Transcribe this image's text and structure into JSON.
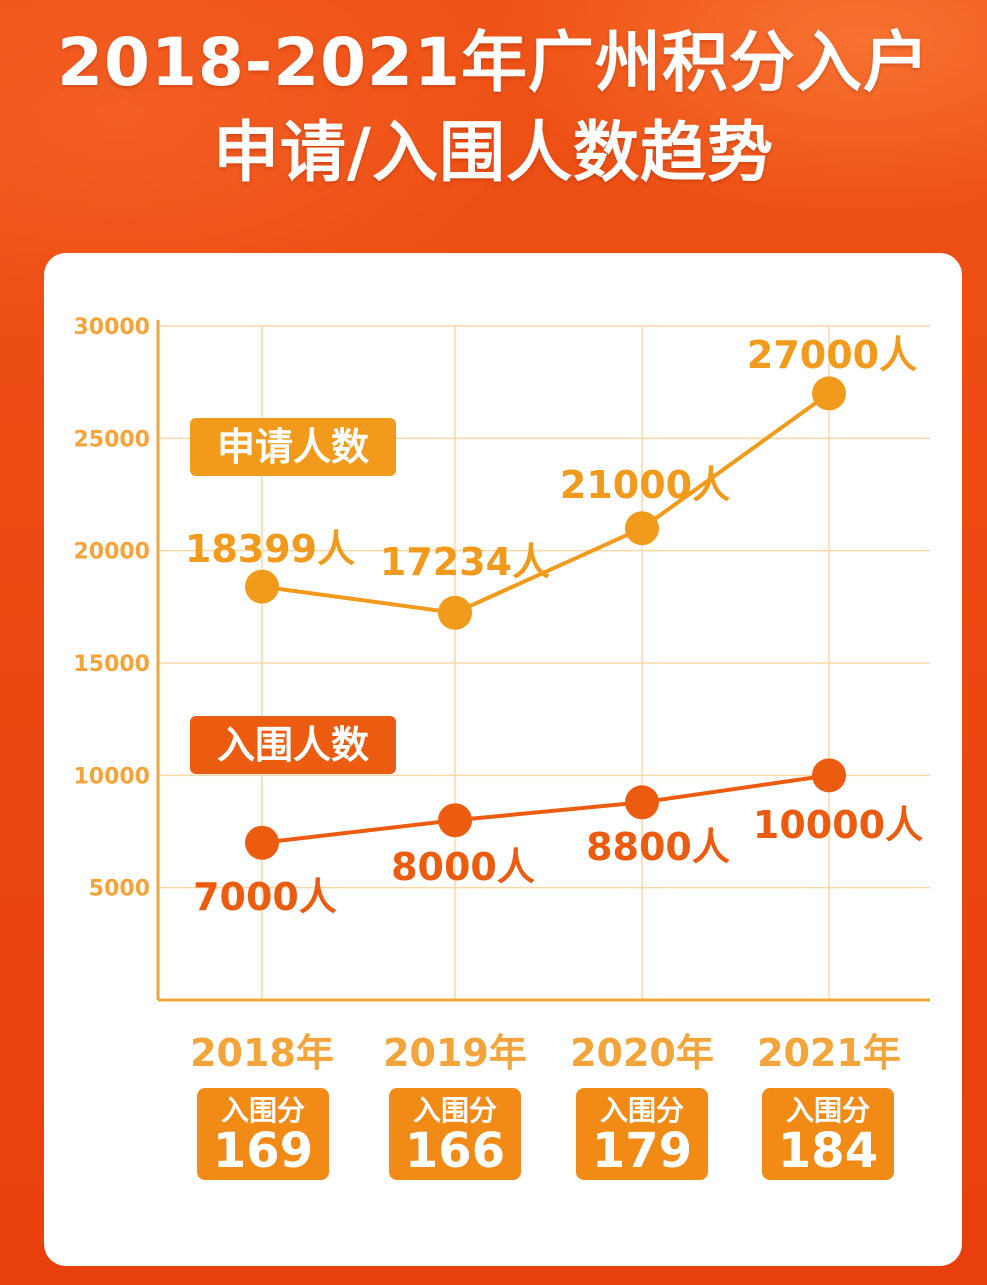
{
  "title": {
    "line1": "2018-2021年广州积分入户",
    "line2": "申请/入围人数趋势"
  },
  "colors": {
    "background": "#ea4a12",
    "apply_series": "#f29a1c",
    "admit_series": "#ec5c10",
    "axis": "#f3a43a",
    "grid": "#f9d8a8",
    "score_box": "#f28a16"
  },
  "chart_data": {
    "type": "line",
    "categories": [
      "2018年",
      "2019年",
      "2020年",
      "2021年"
    ],
    "ylim": [
      0,
      30000
    ],
    "yticks": [
      5000,
      10000,
      15000,
      20000,
      25000,
      30000
    ],
    "grid": true,
    "series": [
      {
        "name": "申请人数",
        "values": [
          18399,
          17234,
          21000,
          27000
        ],
        "labels": [
          "18399人",
          "17234人",
          "21000人",
          "27000人"
        ]
      },
      {
        "name": "入围人数",
        "values": [
          7000,
          8000,
          8800,
          10000
        ],
        "labels": [
          "7000人",
          "8000人",
          "8800人",
          "10000人"
        ]
      }
    ]
  },
  "scores": [
    {
      "label": "入围分",
      "value": "169"
    },
    {
      "label": "入围分",
      "value": "166"
    },
    {
      "label": "入围分",
      "value": "179"
    },
    {
      "label": "入围分",
      "value": "184"
    }
  ]
}
